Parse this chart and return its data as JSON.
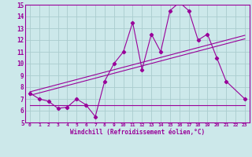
{
  "bg_color": "#cce8ea",
  "grid_color": "#aaccce",
  "line_color": "#990099",
  "xlabel": "Windchill (Refroidissement éolien,°C)",
  "xlim": [
    -0.5,
    23.5
  ],
  "ylim": [
    5,
    15
  ],
  "xticks": [
    0,
    1,
    2,
    3,
    4,
    5,
    6,
    7,
    8,
    9,
    10,
    11,
    12,
    13,
    14,
    15,
    16,
    17,
    18,
    19,
    20,
    21,
    22,
    23
  ],
  "yticks": [
    5,
    6,
    7,
    8,
    9,
    10,
    11,
    12,
    13,
    14,
    15
  ],
  "series1_x": [
    0,
    1,
    2,
    3,
    4,
    5,
    6,
    7,
    8,
    9,
    10,
    11,
    12,
    13,
    14,
    15,
    16,
    17,
    18,
    19,
    20,
    21,
    23
  ],
  "series1_y": [
    7.5,
    7.0,
    6.8,
    6.2,
    6.3,
    7.0,
    6.5,
    5.5,
    8.5,
    10.0,
    11.0,
    13.5,
    9.5,
    12.5,
    11.0,
    14.5,
    15.2,
    14.5,
    12.0,
    12.5,
    10.5,
    8.5,
    7.0
  ],
  "series2_x": [
    0,
    23
  ],
  "series2_y": [
    6.5,
    6.5
  ],
  "regline1_x": [
    0,
    23
  ],
  "regline1_y": [
    7.3,
    12.1
  ],
  "regline2_x": [
    0,
    23
  ],
  "regline2_y": [
    7.6,
    12.4
  ]
}
